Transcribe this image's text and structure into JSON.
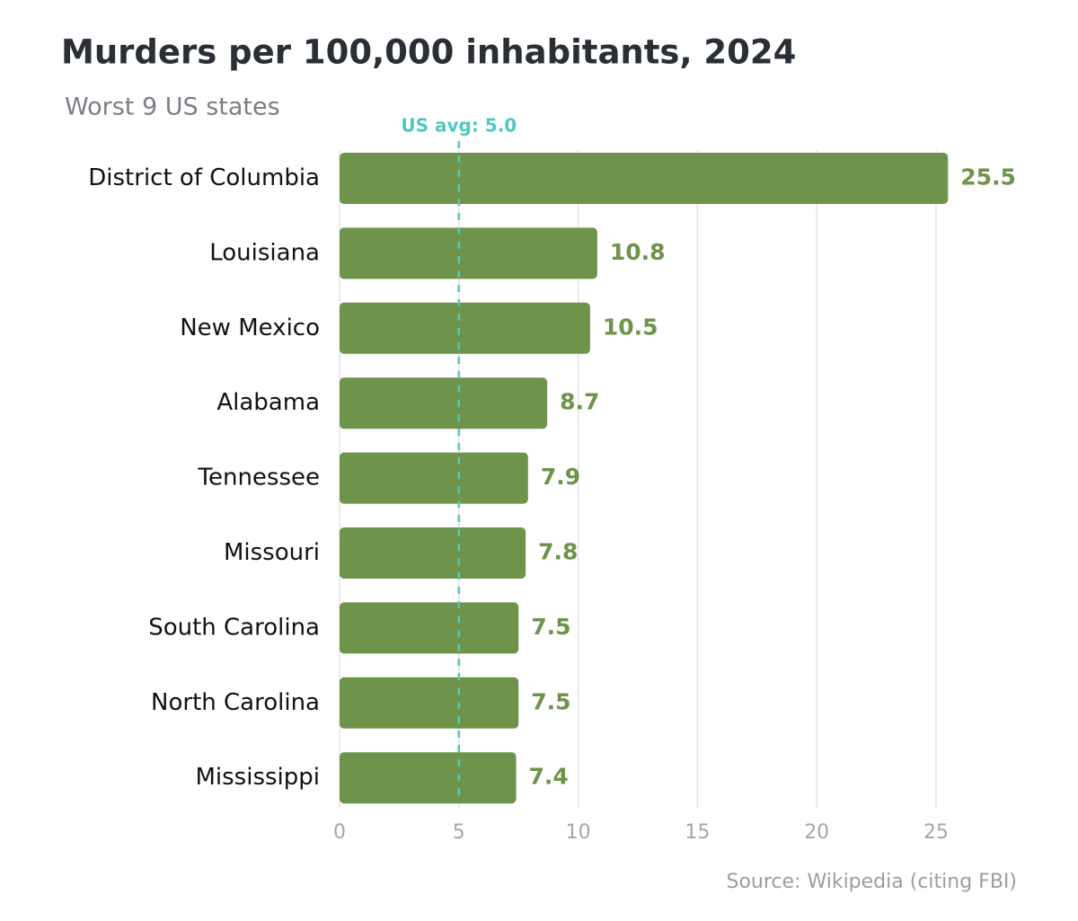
{
  "chart_data": {
    "type": "hbar",
    "title": "Murders per 100,000 inhabitants, 2024",
    "subtitle": "Worst 9 US states",
    "source": "Source: Wikipedia (citing FBI)",
    "categories": [
      "District of Columbia",
      "Louisiana",
      "New Mexico",
      "Alabama",
      "Tennessee",
      "Missouri",
      "South Carolina",
      "North Carolina",
      "Mississippi"
    ],
    "values": [
      25.5,
      10.8,
      10.5,
      8.7,
      7.9,
      7.8,
      7.5,
      7.5,
      7.4
    ],
    "color": "#6e934a",
    "xlim": [
      0,
      27
    ],
    "xticks": [
      0,
      5,
      10,
      15,
      20,
      25
    ],
    "grid": true,
    "reference_line": {
      "value": 5,
      "label": "US avg: 5.0",
      "color": "#4fc9c0"
    }
  }
}
